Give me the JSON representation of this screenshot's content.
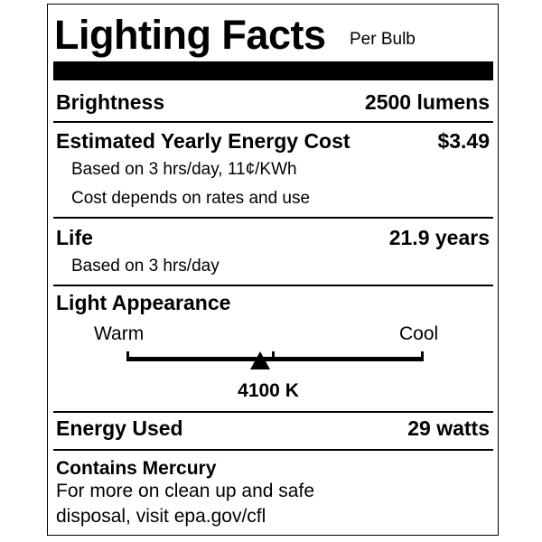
{
  "header": {
    "title": "Lighting Facts",
    "subtitle": "Per Bulb"
  },
  "brightness": {
    "label": "Brightness",
    "value": "2500 lumens"
  },
  "energy_cost": {
    "label": "Estimated Yearly Energy Cost",
    "value": "$3.49",
    "note1": "Based on 3 hrs/day, 11¢/KWh",
    "note2": "Cost depends on rates and use"
  },
  "life": {
    "label": "Life",
    "value": "21.9 years",
    "note": "Based on 3 hrs/day"
  },
  "light_appearance": {
    "label": "Light Appearance",
    "warm_label": "Warm",
    "cool_label": "Cool",
    "value": "4100 K",
    "position_fraction": 0.45
  },
  "energy_used": {
    "label": "Energy Used",
    "value": "29 watts"
  },
  "mercury": {
    "label": "Contains Mercury",
    "line1": "For more on clean up and safe",
    "line2": "disposal, visit epa.gov/cfl"
  }
}
